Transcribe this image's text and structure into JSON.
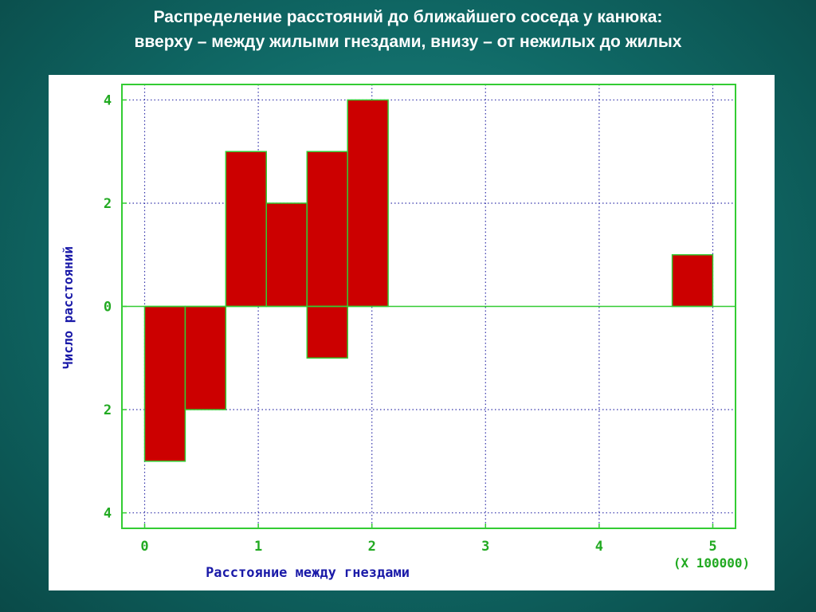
{
  "slide": {
    "title_line1": "Распределение расстояний до ближайшего соседа у канюка:",
    "title_line2": "вверху – между жилыми гнездами, внизу – от нежилых до жилых"
  },
  "colors": {
    "background": "#0f6764",
    "bar_fill": "#cc0000",
    "frame": "#33cc33",
    "grid": "#3333aa",
    "label": "#1a1aa8",
    "tick_label": "#22aa22"
  },
  "chart_data": {
    "type": "bar",
    "title": "",
    "xlabel": "Расстояние между гнездами",
    "ylabel": "Число расстояний",
    "x_multiplier_label": "(X 100000)",
    "xlim": [
      -0.2,
      5.2
    ],
    "ylim": [
      -4.3,
      4.3
    ],
    "x_ticks": [
      0,
      1,
      2,
      3,
      4,
      5
    ],
    "x_tick_labels": [
      "0",
      "1",
      "2",
      "3",
      "4",
      "5"
    ],
    "y_ticks": [
      4,
      2,
      0,
      -2,
      -4
    ],
    "y_tick_labels": [
      "4",
      "2",
      "0",
      "2",
      "4"
    ],
    "grid": true,
    "bin_width": 0.357,
    "series": [
      {
        "values": [
          {
            "x": 0.714,
            "y": 3
          },
          {
            "x": 1.071,
            "y": 2
          },
          {
            "x": 1.429,
            "y": 3
          },
          {
            "x": 1.786,
            "y": 4
          },
          {
            "x": 4.643,
            "y": 1
          }
        ]
      },
      {
        "values": [
          {
            "x": 0.0,
            "y": -3
          },
          {
            "x": 0.357,
            "y": -2
          },
          {
            "x": 1.429,
            "y": -1
          }
        ]
      }
    ]
  }
}
